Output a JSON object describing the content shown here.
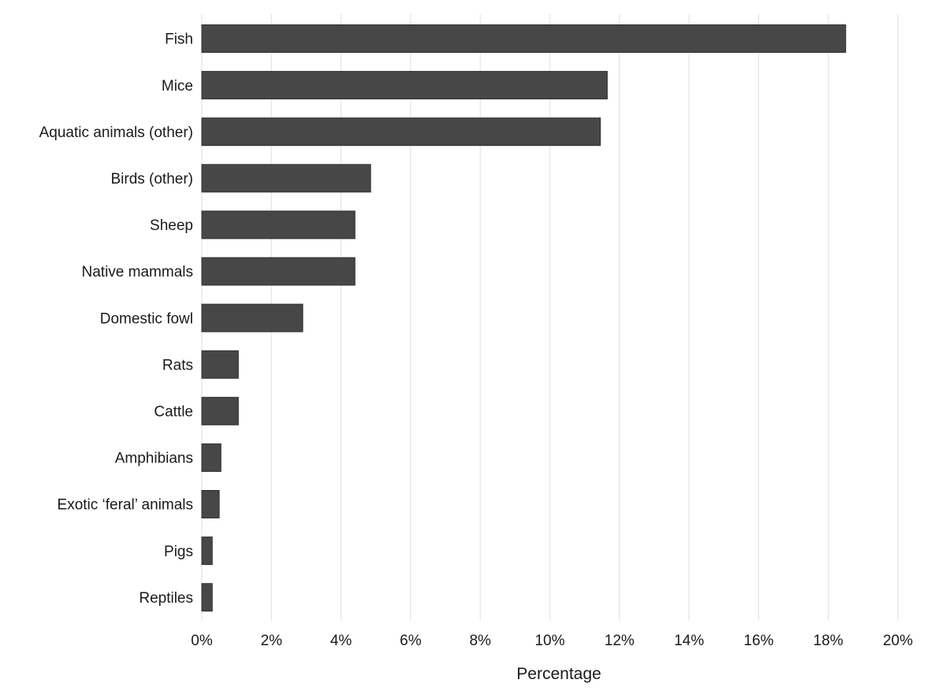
{
  "chart_data": {
    "type": "bar",
    "orientation": "horizontal",
    "categories": [
      "Fish",
      "Mice",
      "Aquatic animals (other)",
      "Birds (other)",
      "Sheep",
      "Native mammals",
      "Domestic fowl",
      "Rats",
      "Cattle",
      "Amphibians",
      "Exotic ‘feral’ animals",
      "Pigs",
      "Reptiles"
    ],
    "values": [
      18.5,
      11.65,
      11.45,
      4.85,
      4.4,
      4.4,
      2.9,
      1.05,
      1.05,
      0.55,
      0.5,
      0.3,
      0.3
    ],
    "unit": "%",
    "xlabel": "Percentage",
    "ylabel": "",
    "xlim": [
      0,
      20
    ],
    "x_ticks": [
      {
        "value": 0,
        "label": "0%"
      },
      {
        "value": 2,
        "label": "2%"
      },
      {
        "value": 4,
        "label": "4%"
      },
      {
        "value": 6,
        "label": "6%"
      },
      {
        "value": 8,
        "label": "8%"
      },
      {
        "value": 10,
        "label": "10%"
      },
      {
        "value": 12,
        "label": "12%"
      },
      {
        "value": 14,
        "label": "14%"
      },
      {
        "value": 16,
        "label": "16%"
      },
      {
        "value": 18,
        "label": "18%"
      },
      {
        "value": 20,
        "label": "20%"
      }
    ],
    "grid": "vertical",
    "legend": "none",
    "bar_color": "#474747",
    "grid_color": "#e6e6e6"
  }
}
